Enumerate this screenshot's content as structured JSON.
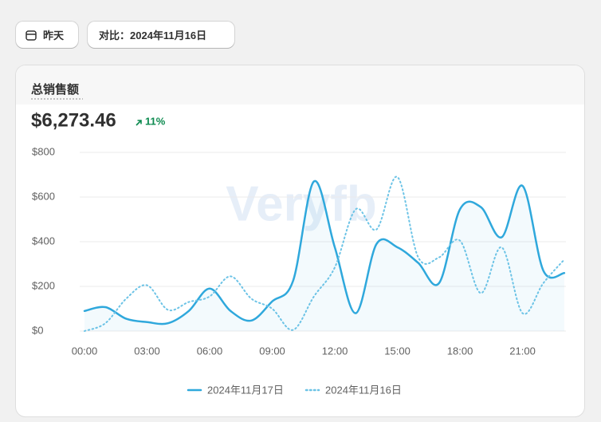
{
  "header": {
    "date_button": "昨天",
    "compare_button": "对比：2024年11月16日"
  },
  "chart_data": {
    "type": "line",
    "title": "总销售额",
    "total": "$6,273.46",
    "change": "11%",
    "watermark": "Veryfb",
    "categories": [
      "00:00",
      null,
      null,
      "03:00",
      null,
      null,
      "06:00",
      null,
      null,
      "09:00",
      null,
      null,
      "12:00",
      null,
      null,
      "15:00",
      null,
      null,
      "18:00",
      null,
      null,
      "21:00",
      null,
      null
    ],
    "series": [
      {
        "name": "2024年11月17日",
        "color": "#2fa8dc",
        "style": "solid",
        "values": [
          90,
          107,
          55,
          40,
          35,
          90,
          190,
          90,
          47,
          133,
          225,
          670,
          375,
          80,
          390,
          375,
          305,
          215,
          545,
          555,
          420,
          650,
          270,
          260
        ]
      },
      {
        "name": "2024年11月16日",
        "color": "#6cc3e6",
        "style": "dotted",
        "values": [
          0,
          35,
          145,
          205,
          95,
          130,
          155,
          245,
          145,
          100,
          5,
          155,
          285,
          545,
          455,
          690,
          330,
          330,
          405,
          170,
          375,
          80,
          215,
          320
        ]
      }
    ],
    "ylim": [
      0,
      800
    ],
    "yticks": [
      {
        "value": 0,
        "label": "$0"
      },
      {
        "value": 200,
        "label": "$200"
      },
      {
        "value": 400,
        "label": "$400"
      },
      {
        "value": 600,
        "label": "$600"
      },
      {
        "value": 800,
        "label": "$800"
      }
    ],
    "grid": true,
    "legend": "bottom"
  }
}
